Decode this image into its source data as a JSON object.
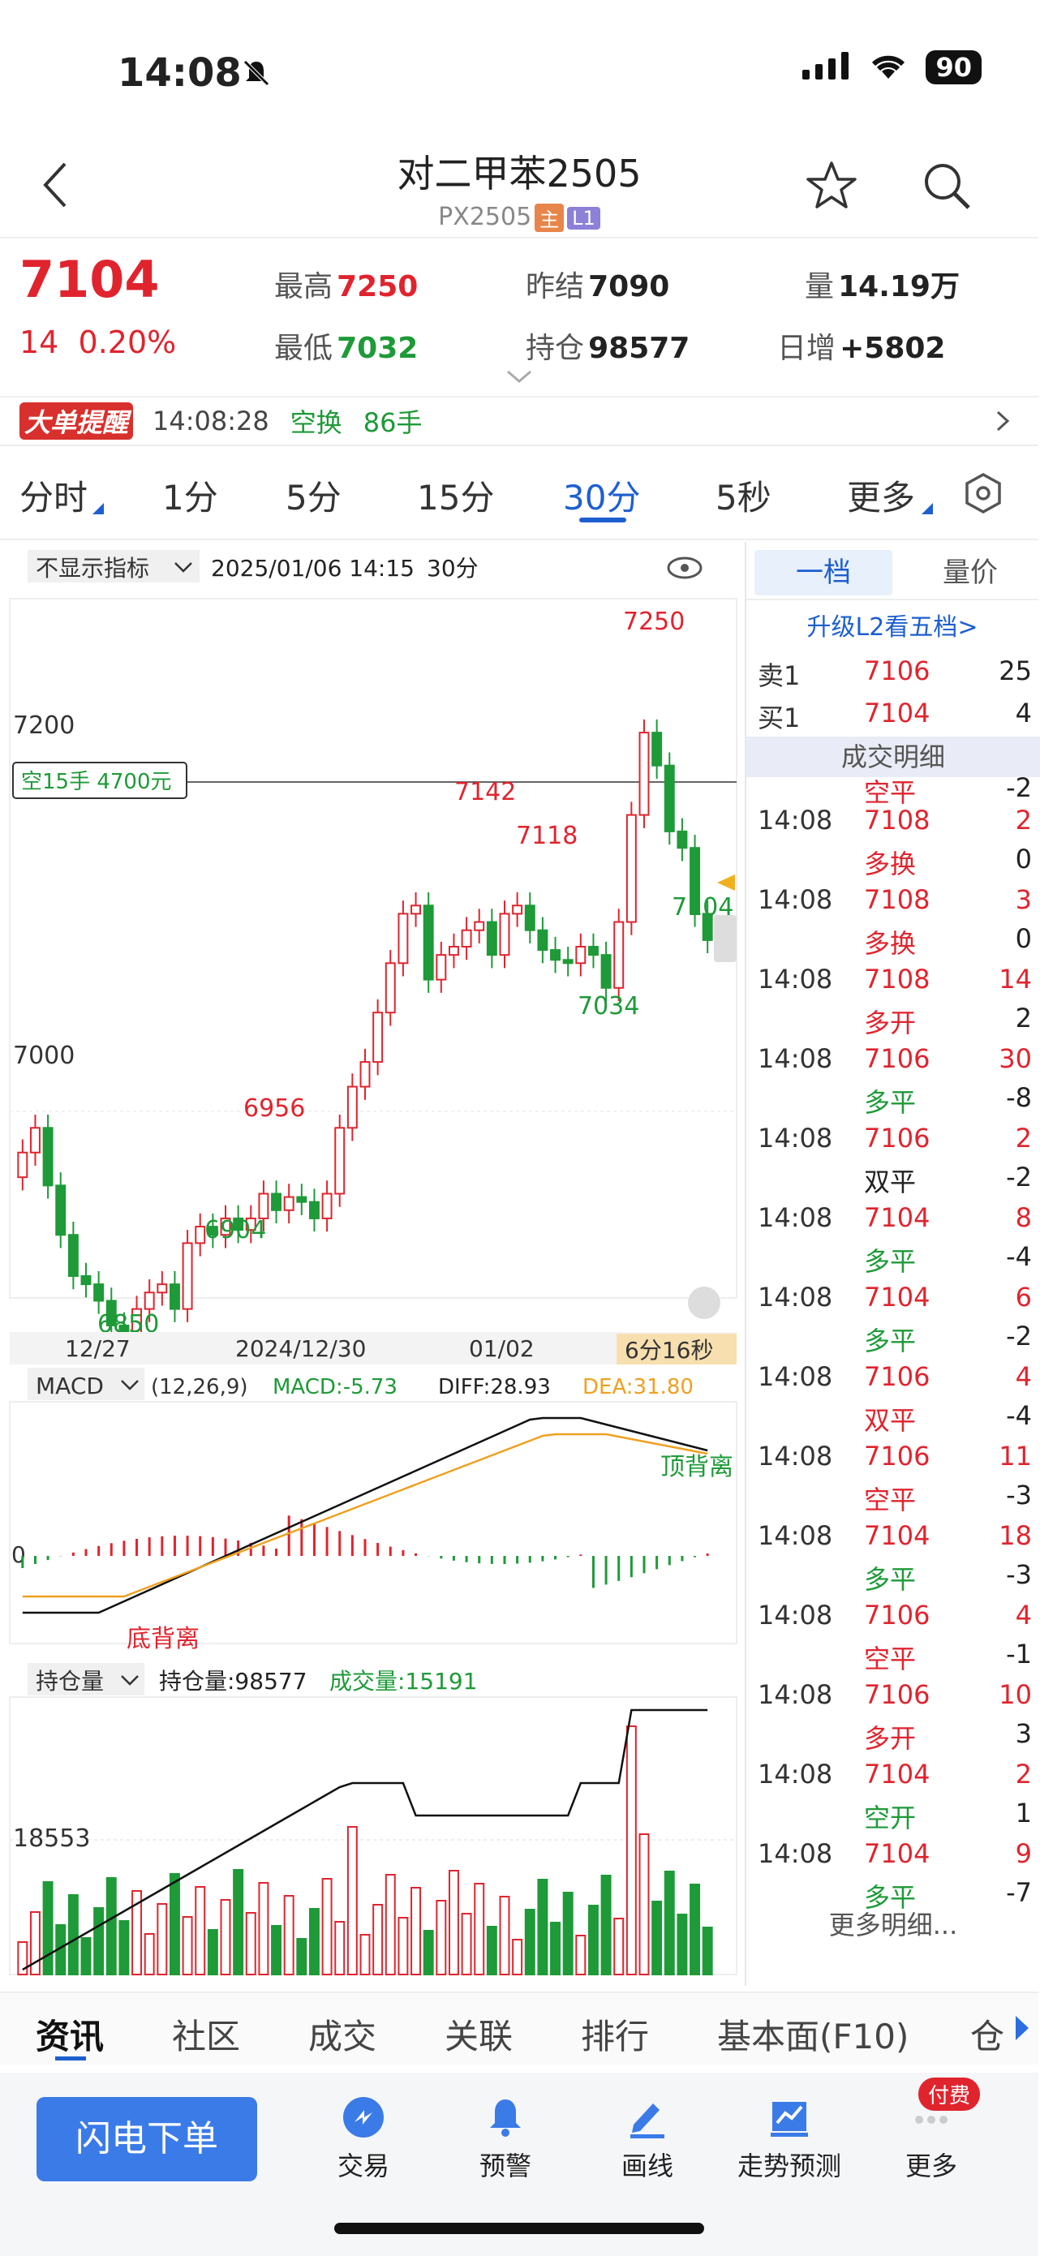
{
  "status": {
    "time": "14:08",
    "battery": "90"
  },
  "header": {
    "title": "对二甲苯2505",
    "code": "PX2505",
    "tag_main": "主",
    "tag_level": "L1"
  },
  "quote": {
    "price": "7104",
    "change": "14",
    "change_pct": "0.20%",
    "high_label": "最高",
    "high": "7250",
    "low_label": "最低",
    "low": "7032",
    "prev_settle_label": "昨结",
    "prev_settle": "7090",
    "open_interest_label": "持仓",
    "open_interest": "98577",
    "volume_label": "量",
    "volume": "14.19万",
    "daily_inc_label": "日增",
    "daily_inc": "+5802"
  },
  "alert": {
    "badge": "大单提醒",
    "time": "14:08:28",
    "type": "空换",
    "amount": "86手"
  },
  "tabs": [
    "分时",
    "1分",
    "5分",
    "15分",
    "30分",
    "5秒",
    "更多"
  ],
  "active_tab": "30分",
  "chart": {
    "indicator_select": "不显示指标",
    "datetime": "2025/01/06 14:15",
    "period": "30分",
    "order_label": "空15手 4700元",
    "y_labels": [
      "7200",
      "7000"
    ],
    "annotations": [
      "7250",
      "7142",
      "7118",
      "7104",
      "7034",
      "6956",
      "6904",
      "6850"
    ],
    "dates": [
      "12/27",
      "2024/12/30",
      "01/02"
    ],
    "countdown": "6分16秒",
    "macd_select": "MACD",
    "macd_params": "(12,26,9)",
    "macd_value": "MACD:-5.73",
    "diff_value": "DIFF:28.93",
    "dea_value": "DEA:31.80",
    "macd_top_div": "顶背离",
    "macd_bottom_div": "底背离",
    "macd_zero": "0",
    "oi_select": "持仓量",
    "oi_value": "持仓量:98577",
    "vol_value": "成交量:15191",
    "oi_axis": "18553"
  },
  "side": {
    "tab1": "一档",
    "tab2": "量价",
    "upgrade": "升级L2看五档>",
    "ask_label": "卖1",
    "ask_price": "7106",
    "ask_vol": "25",
    "bid_label": "买1",
    "bid_price": "7104",
    "bid_vol": "4",
    "detail_title": "成交明细",
    "partial_type": "空平",
    "partial_delta": "-2",
    "trades": [
      {
        "time": "14:08",
        "price": "7108",
        "vol": "2",
        "type": "多换",
        "delta": "0",
        "pc": "red",
        "tc": "red"
      },
      {
        "time": "14:08",
        "price": "7108",
        "vol": "3",
        "type": "多换",
        "delta": "0",
        "pc": "red",
        "tc": "red"
      },
      {
        "time": "14:08",
        "price": "7108",
        "vol": "14",
        "type": "多开",
        "delta": "2",
        "pc": "red",
        "tc": "red"
      },
      {
        "time": "14:08",
        "price": "7106",
        "vol": "30",
        "type": "多平",
        "delta": "-8",
        "pc": "red",
        "tc": "green"
      },
      {
        "time": "14:08",
        "price": "7106",
        "vol": "2",
        "type": "双平",
        "delta": "-2",
        "pc": "red",
        "tc": "black"
      },
      {
        "time": "14:08",
        "price": "7104",
        "vol": "8",
        "type": "多平",
        "delta": "-4",
        "pc": "red",
        "tc": "green"
      },
      {
        "time": "14:08",
        "price": "7104",
        "vol": "6",
        "type": "多平",
        "delta": "-2",
        "pc": "red",
        "tc": "green"
      },
      {
        "time": "14:08",
        "price": "7106",
        "vol": "4",
        "type": "双平",
        "delta": "-4",
        "pc": "red",
        "tc": "red"
      },
      {
        "time": "14:08",
        "price": "7106",
        "vol": "11",
        "type": "空平",
        "delta": "-3",
        "pc": "red",
        "tc": "red"
      },
      {
        "time": "14:08",
        "price": "7104",
        "vol": "18",
        "type": "多平",
        "delta": "-3",
        "pc": "red",
        "tc": "green"
      },
      {
        "time": "14:08",
        "price": "7106",
        "vol": "4",
        "type": "空平",
        "delta": "-1",
        "pc": "red",
        "tc": "red"
      },
      {
        "time": "14:08",
        "price": "7106",
        "vol": "10",
        "type": "多开",
        "delta": "3",
        "pc": "red",
        "tc": "red"
      },
      {
        "time": "14:08",
        "price": "7104",
        "vol": "2",
        "type": "空开",
        "delta": "1",
        "pc": "red",
        "tc": "green"
      },
      {
        "time": "14:08",
        "price": "7104",
        "vol": "9",
        "type": "多平",
        "delta": "-7",
        "pc": "red",
        "tc": "green"
      }
    ],
    "more": "更多明细..."
  },
  "bottom_tabs": [
    "资讯",
    "社区",
    "成交",
    "关联",
    "排行",
    "基本面(F10)",
    "仓"
  ],
  "bottom_bar": {
    "flash": "闪电下单",
    "items": [
      "交易",
      "预警",
      "画线",
      "走势预测",
      "更多"
    ],
    "paid_badge": "付费"
  },
  "colors": {
    "up": "#e0242e",
    "down": "#1e9a38",
    "accent": "#1e5fcf",
    "ma": "#f0a020"
  }
}
